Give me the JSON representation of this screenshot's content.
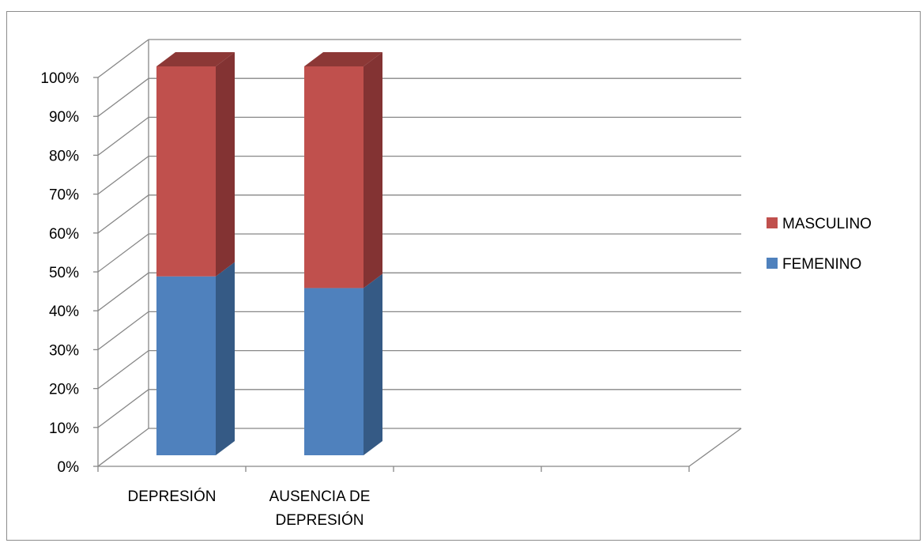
{
  "chart_data": {
    "type": "bar",
    "stacked": true,
    "three_d": true,
    "categories": [
      "DEPRESIÓN",
      "AUSENCIA DE DEPRESIÓN",
      "",
      ""
    ],
    "series": [
      {
        "name": "FEMENINO",
        "values": [
          46,
          43,
          null,
          null
        ],
        "color": "#4f81bd",
        "side_color": "#355a85",
        "top_color": "#3e6699"
      },
      {
        "name": "MASCULINO",
        "values": [
          54,
          57,
          null,
          null
        ],
        "color": "#c0504d",
        "side_color": "#833333",
        "top_color": "#8c3836"
      }
    ],
    "y_ticks": [
      "0%",
      "10%",
      "20%",
      "30%",
      "40%",
      "50%",
      "60%",
      "70%",
      "80%",
      "90%",
      "100%"
    ],
    "ylim": [
      0,
      100
    ],
    "grid": true,
    "legend_position": "right",
    "title": "",
    "xlabel": "",
    "ylabel": ""
  }
}
